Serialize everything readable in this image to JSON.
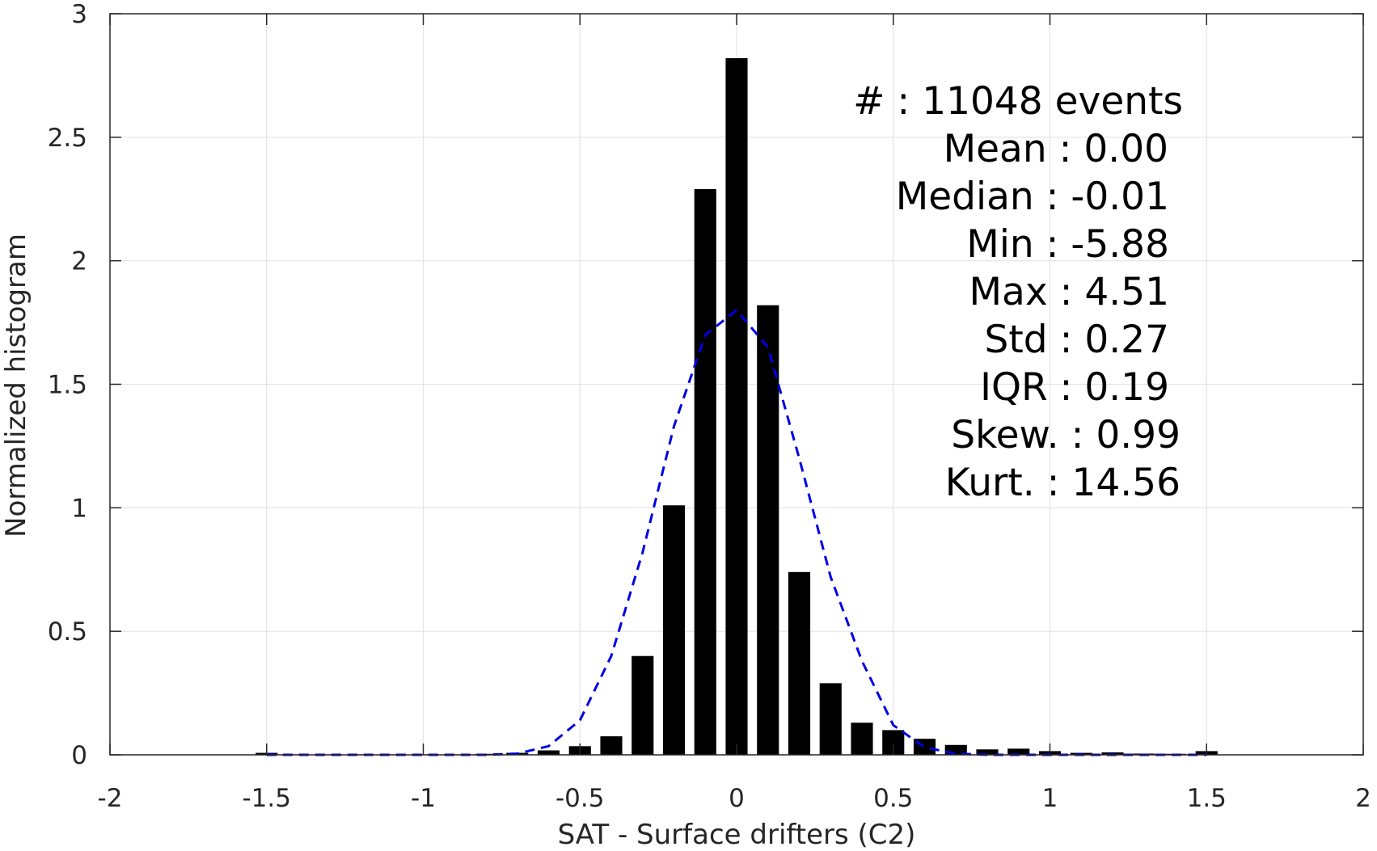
{
  "chart_data": {
    "type": "bar",
    "xlabel": "SAT - Surface drifters (C2)",
    "ylabel": "Normalized histogram",
    "xlim": [
      -2,
      2
    ],
    "ylim": [
      0,
      3
    ],
    "xticks": [
      -2,
      -1.5,
      -1,
      -0.5,
      0,
      0.5,
      1,
      1.5,
      2
    ],
    "xtick_labels": [
      "-2",
      "-1.5",
      "-1",
      "-0.5",
      "0",
      "0.5",
      "1",
      "1.5",
      "2"
    ],
    "yticks": [
      0,
      0.5,
      1,
      1.5,
      2,
      2.5,
      3
    ],
    "ytick_labels": [
      "0",
      "0.5",
      "1",
      "1.5",
      "2",
      "2.5",
      "3"
    ],
    "grid": true,
    "bar_width": 0.07,
    "bars": {
      "x": [
        -1.5,
        -1.4,
        -1.3,
        -1.2,
        -1.1,
        -1.0,
        -0.9,
        -0.8,
        -0.7,
        -0.6,
        -0.5,
        -0.4,
        -0.3,
        -0.2,
        -0.1,
        0.0,
        0.1,
        0.2,
        0.3,
        0.4,
        0.5,
        0.6,
        0.7,
        0.8,
        0.9,
        1.0,
        1.1,
        1.2,
        1.3,
        1.4,
        1.5
      ],
      "values": [
        0.008,
        0.002,
        0.002,
        0.002,
        0.002,
        0.002,
        0.002,
        0.004,
        0.008,
        0.018,
        0.035,
        0.075,
        0.4,
        1.01,
        2.29,
        2.82,
        1.82,
        0.74,
        0.29,
        0.13,
        0.1,
        0.065,
        0.04,
        0.022,
        0.025,
        0.015,
        0.008,
        0.01,
        0.005,
        0.004,
        0.015
      ],
      "color": "#000000"
    },
    "fit": {
      "type": "dashed-line",
      "color": "#0000e6",
      "x": [
        -1.5,
        -1.4,
        -1.3,
        -1.2,
        -1.1,
        -1.0,
        -0.9,
        -0.8,
        -0.7,
        -0.6,
        -0.5,
        -0.4,
        -0.3,
        -0.2,
        -0.1,
        0.0,
        0.1,
        0.2,
        0.3,
        0.4,
        0.5,
        0.6,
        0.7,
        0.8,
        0.9,
        1.0,
        1.1,
        1.2,
        1.3,
        1.4,
        1.5
      ],
      "y": [
        0.0,
        0.0,
        0.0,
        0.0,
        0.0,
        0.0,
        0.0,
        0.0,
        0.005,
        0.035,
        0.14,
        0.4,
        0.82,
        1.33,
        1.7,
        1.8,
        1.65,
        1.2,
        0.72,
        0.38,
        0.12,
        0.03,
        0.005,
        0.0,
        0.0,
        0.0,
        0.0,
        0.0,
        0.0,
        0.0,
        0.0
      ]
    },
    "stats": [
      "#  : 11048 events",
      "Mean : 0.00",
      "Median : -0.01",
      "Min : -5.88",
      "Max : 4.51",
      "Std : 0.27",
      "IQR : 0.19",
      "Skew. : 0.99",
      "Kurt. : 14.56"
    ]
  }
}
